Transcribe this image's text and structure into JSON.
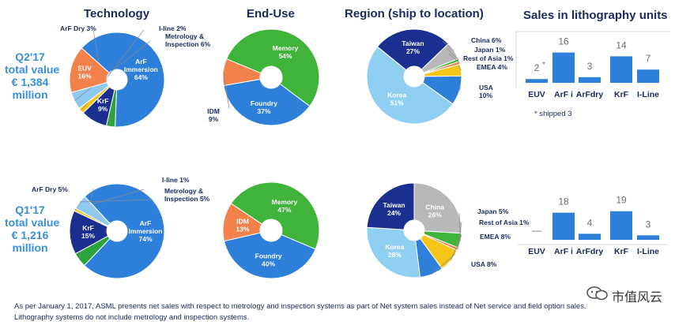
{
  "headers": {
    "technology": "Technology",
    "end_use": "End-Use",
    "region": "Region (ship to location)",
    "sales_units": "Sales in lithography units"
  },
  "quarters": [
    {
      "lines": [
        "Q2'17",
        "total value",
        "€ 1,384",
        "million"
      ]
    },
    {
      "lines": [
        "Q1'17",
        "total value",
        "€ 1,216",
        "million"
      ]
    }
  ],
  "footnote": {
    "line1": "As per January 1, 2017, ASML presents net sales with respect to metrology and inspection systems as part of Net system sales instead of Net service and field option sales.",
    "line2": "Lithography systems do not include metrology and inspection systems."
  },
  "shipped_note": "* shipped 3",
  "watermark": "市值风云",
  "colors": {
    "title": "#1a2a5c",
    "quarter_text": "#3b8fd6",
    "bar": "#2e7fd9",
    "arf_immersion": "#2e7fd9",
    "krf": "#1a2f8f",
    "arf_dry": "#2da33e",
    "i_line": "#f5c518",
    "metrology": "#8fc9f0",
    "euv": "#f2814b",
    "memory": "#3fb33a",
    "foundry": "#2e7fd9",
    "idm": "#f2814b",
    "korea": "#8fcff2",
    "taiwan": "#1a2f8f",
    "china": "#b8b8b8",
    "japan": "#3fb33a",
    "rest_of_asia": "#f2814b",
    "emea": "#f5c518",
    "usa": "#2e7fd9"
  },
  "chart_data": [
    {
      "type": "pie",
      "name": "technology_q2_17",
      "slices": [
        {
          "label": "ArF Immersion",
          "value": 64,
          "label_text": "ArF\nImmersion\n64%",
          "color_key": "arf_immersion",
          "inside": true
        },
        {
          "label": "ArF Dry",
          "value": 3,
          "label_text": "ArF Dry 3%",
          "color_key": "arf_dry",
          "inside": false
        },
        {
          "label": "KrF",
          "value": 9,
          "label_text": "KrF\n9%",
          "color_key": "krf",
          "inside": true
        },
        {
          "label": "I-line",
          "value": 2,
          "label_text": "I-line 2%",
          "color_key": "i_line",
          "inside": false
        },
        {
          "label": "Metrology & Inspection",
          "value": 6,
          "label_text": "Metrology &\nInspection 6%",
          "color_key": "metrology",
          "inside": false
        },
        {
          "label": "EUV",
          "value": 16,
          "label_text": "EUV\n16%",
          "color_key": "euv",
          "inside": true
        }
      ]
    },
    {
      "type": "pie",
      "name": "end_use_q2_17",
      "slices": [
        {
          "label": "Memory",
          "value": 54,
          "label_text": "Memory\n54%",
          "color_key": "memory",
          "inside": true
        },
        {
          "label": "Foundry",
          "value": 37,
          "label_text": "Foundry\n37%",
          "color_key": "foundry",
          "inside": true
        },
        {
          "label": "IDM",
          "value": 9,
          "label_text": "IDM\n9%",
          "color_key": "idm",
          "inside": false
        }
      ]
    },
    {
      "type": "pie",
      "name": "region_q2_17",
      "slices": [
        {
          "label": "Taiwan",
          "value": 27,
          "label_text": "Taiwan\n27%",
          "color_key": "taiwan",
          "inside": true
        },
        {
          "label": "China",
          "value": 6,
          "label_text": "China 6%",
          "color_key": "china",
          "inside": false
        },
        {
          "label": "Japan",
          "value": 1,
          "label_text": "Japan 1%",
          "color_key": "japan",
          "inside": false
        },
        {
          "label": "Rest of Asia",
          "value": 1,
          "label_text": "Rest of Asia 1%",
          "color_key": "rest_of_asia",
          "inside": false
        },
        {
          "label": "EMEA",
          "value": 4,
          "label_text": "EMEA 4%",
          "color_key": "emea",
          "inside": false
        },
        {
          "label": "USA",
          "value": 10,
          "label_text": "USA\n10%",
          "color_key": "usa",
          "inside": false
        },
        {
          "label": "Korea",
          "value": 51,
          "label_text": "Korea\n51%",
          "color_key": "korea",
          "inside": true
        }
      ]
    },
    {
      "type": "bar",
      "name": "sales_units_q2_17",
      "categories": [
        "EUV",
        "ArF i",
        "ArFdry",
        "KrF",
        "I-Line"
      ],
      "values": [
        2,
        16,
        3,
        14,
        7
      ],
      "value_labels": [
        "2",
        "16",
        "3",
        "14",
        "7"
      ],
      "annotation": {
        "category": "EUV",
        "text": "*"
      },
      "ylim": [
        0,
        20
      ]
    },
    {
      "type": "pie",
      "name": "technology_q1_17",
      "slices": [
        {
          "label": "ArF Immersion",
          "value": 74,
          "label_text": "ArF\nImmersion\n74%",
          "color_key": "arf_immersion",
          "inside": true
        },
        {
          "label": "ArF Dry",
          "value": 5,
          "label_text": "ArF Dry 5%",
          "color_key": "arf_dry",
          "inside": false
        },
        {
          "label": "KrF",
          "value": 15,
          "label_text": "KrF\n15%",
          "color_key": "krf",
          "inside": true
        },
        {
          "label": "I-line",
          "value": 1,
          "label_text": "I-line 1%",
          "color_key": "i_line",
          "inside": false
        },
        {
          "label": "Metrology & Inspection",
          "value": 5,
          "label_text": "Metrology &\nInspection 5%",
          "color_key": "metrology",
          "inside": false
        }
      ]
    },
    {
      "type": "pie",
      "name": "end_use_q1_17",
      "slices": [
        {
          "label": "Memory",
          "value": 47,
          "label_text": "Memory\n47%",
          "color_key": "memory",
          "inside": true
        },
        {
          "label": "Foundry",
          "value": 40,
          "label_text": "Foundry\n40%",
          "color_key": "foundry",
          "inside": true
        },
        {
          "label": "IDM",
          "value": 13,
          "label_text": "IDM\n13%",
          "color_key": "idm",
          "inside": true
        }
      ]
    },
    {
      "type": "pie",
      "name": "region_q1_17",
      "slices": [
        {
          "label": "China",
          "value": 26,
          "label_text": "China\n26%",
          "color_key": "china",
          "inside": true
        },
        {
          "label": "Japan",
          "value": 5,
          "label_text": "Japan 5%",
          "color_key": "japan",
          "inside": false
        },
        {
          "label": "Rest of Asia",
          "value": 1,
          "label_text": "Rest of Asia 1%",
          "color_key": "rest_of_asia",
          "inside": false
        },
        {
          "label": "EMEA",
          "value": 8,
          "label_text": "EMEA 8%",
          "color_key": "emea",
          "inside": false
        },
        {
          "label": "USA",
          "value": 8,
          "label_text": "USA 8%",
          "color_key": "usa",
          "inside": false
        },
        {
          "label": "Korea",
          "value": 28,
          "label_text": "Korea\n28%",
          "color_key": "korea",
          "inside": true
        },
        {
          "label": "Taiwan",
          "value": 24,
          "label_text": "Taiwan\n24%",
          "color_key": "taiwan",
          "inside": true
        }
      ]
    },
    {
      "type": "bar",
      "name": "sales_units_q1_17",
      "categories": [
        "EUV",
        "ArF i",
        "ArFdry",
        "KrF",
        "I-Line"
      ],
      "values": [
        0,
        18,
        4,
        19,
        3
      ],
      "value_labels": [
        "—",
        "18",
        "4",
        "19",
        "3"
      ],
      "ylim": [
        0,
        22
      ]
    }
  ]
}
